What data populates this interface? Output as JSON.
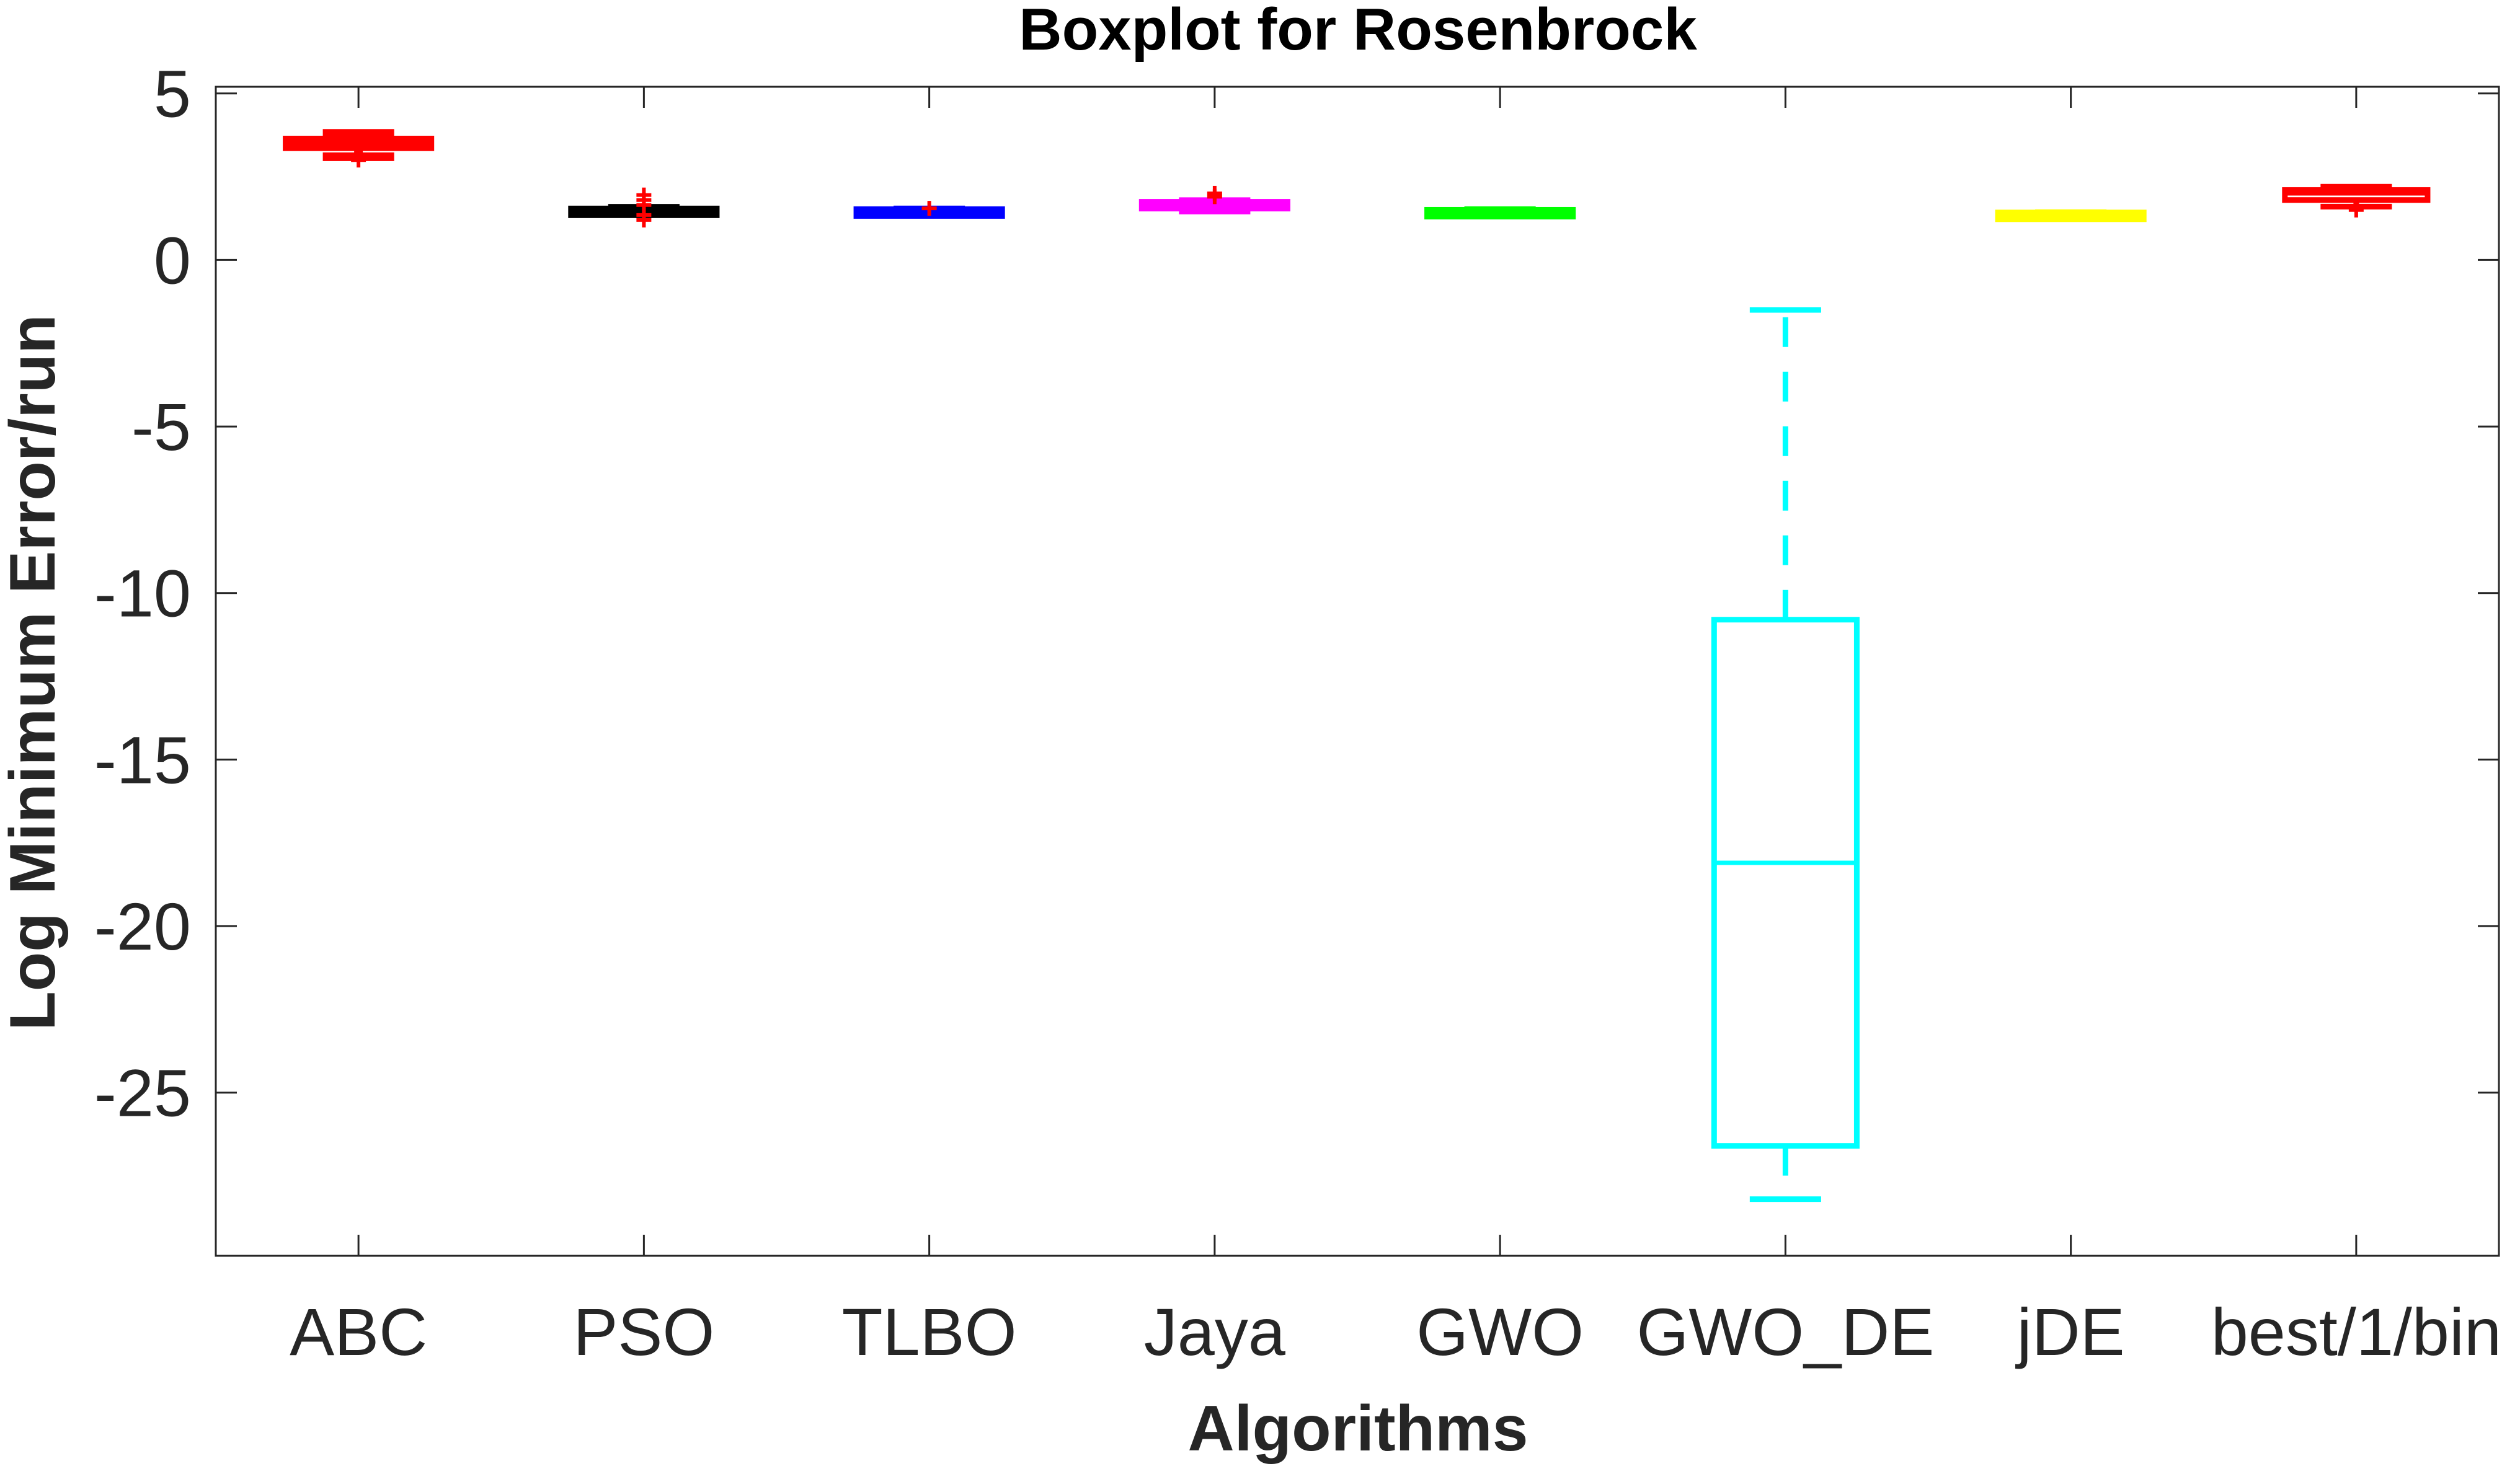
{
  "chart_data": {
    "type": "box",
    "title": "Boxplot for Rosenbrock",
    "xlabel": "Algorithms",
    "ylabel": "Log Minimum Error/run",
    "ylim": [
      -29.9,
      5.2
    ],
    "yticks": [
      5,
      0,
      -5,
      -10,
      -15,
      -20,
      -25
    ],
    "grid": false,
    "categories": [
      "ABC",
      "PSO",
      "TLBO",
      "Jaya",
      "GWO",
      "GWO_DE",
      "jDE",
      "best/1/bin"
    ],
    "series": [
      {
        "category": "ABC",
        "color": "#ff0000",
        "whisker_low": 3.1,
        "q1": 3.4,
        "median": 3.5,
        "q3": 3.6,
        "whisker_high": 3.8,
        "outliers": [
          3.0
        ]
      },
      {
        "category": "PSO",
        "color": "#000000",
        "whisker_low": 1.4,
        "q1": 1.45,
        "median": 1.48,
        "q3": 1.5,
        "whisker_high": 1.55,
        "outliers": [
          1.2,
          1.35,
          1.65,
          1.8,
          1.95
        ]
      },
      {
        "category": "TLBO",
        "color": "#0000ff",
        "whisker_low": 1.38,
        "q1": 1.42,
        "median": 1.45,
        "q3": 1.48,
        "whisker_high": 1.5,
        "outliers": [
          1.55
        ]
      },
      {
        "category": "Jaya",
        "color": "#ff00ff",
        "whisker_low": 1.5,
        "q1": 1.6,
        "median": 1.65,
        "q3": 1.7,
        "whisker_high": 1.75,
        "outliers": [
          1.9,
          2.0
        ]
      },
      {
        "category": "GWO",
        "color": "#00ff00",
        "whisker_low": 1.42,
        "q1": 1.44,
        "median": 1.45,
        "q3": 1.46,
        "whisker_high": 1.48,
        "outliers": []
      },
      {
        "category": "GWO_DE",
        "color": "#00ffff",
        "whisker_low": -28.2,
        "q1": -26.6,
        "median": -18.1,
        "q3": -10.8,
        "whisker_high": -1.5,
        "outliers": []
      },
      {
        "category": "jDE",
        "color": "#ffff00",
        "whisker_low": 1.35,
        "q1": 1.36,
        "median": 1.37,
        "q3": 1.38,
        "whisker_high": 1.39,
        "outliers": []
      },
      {
        "category": "best/1/bin",
        "color": "#ff0000",
        "whisker_low": 1.6,
        "q1": 1.8,
        "median": 2.0,
        "q3": 2.1,
        "whisker_high": 2.2,
        "outliers": [
          1.5
        ]
      }
    ]
  }
}
